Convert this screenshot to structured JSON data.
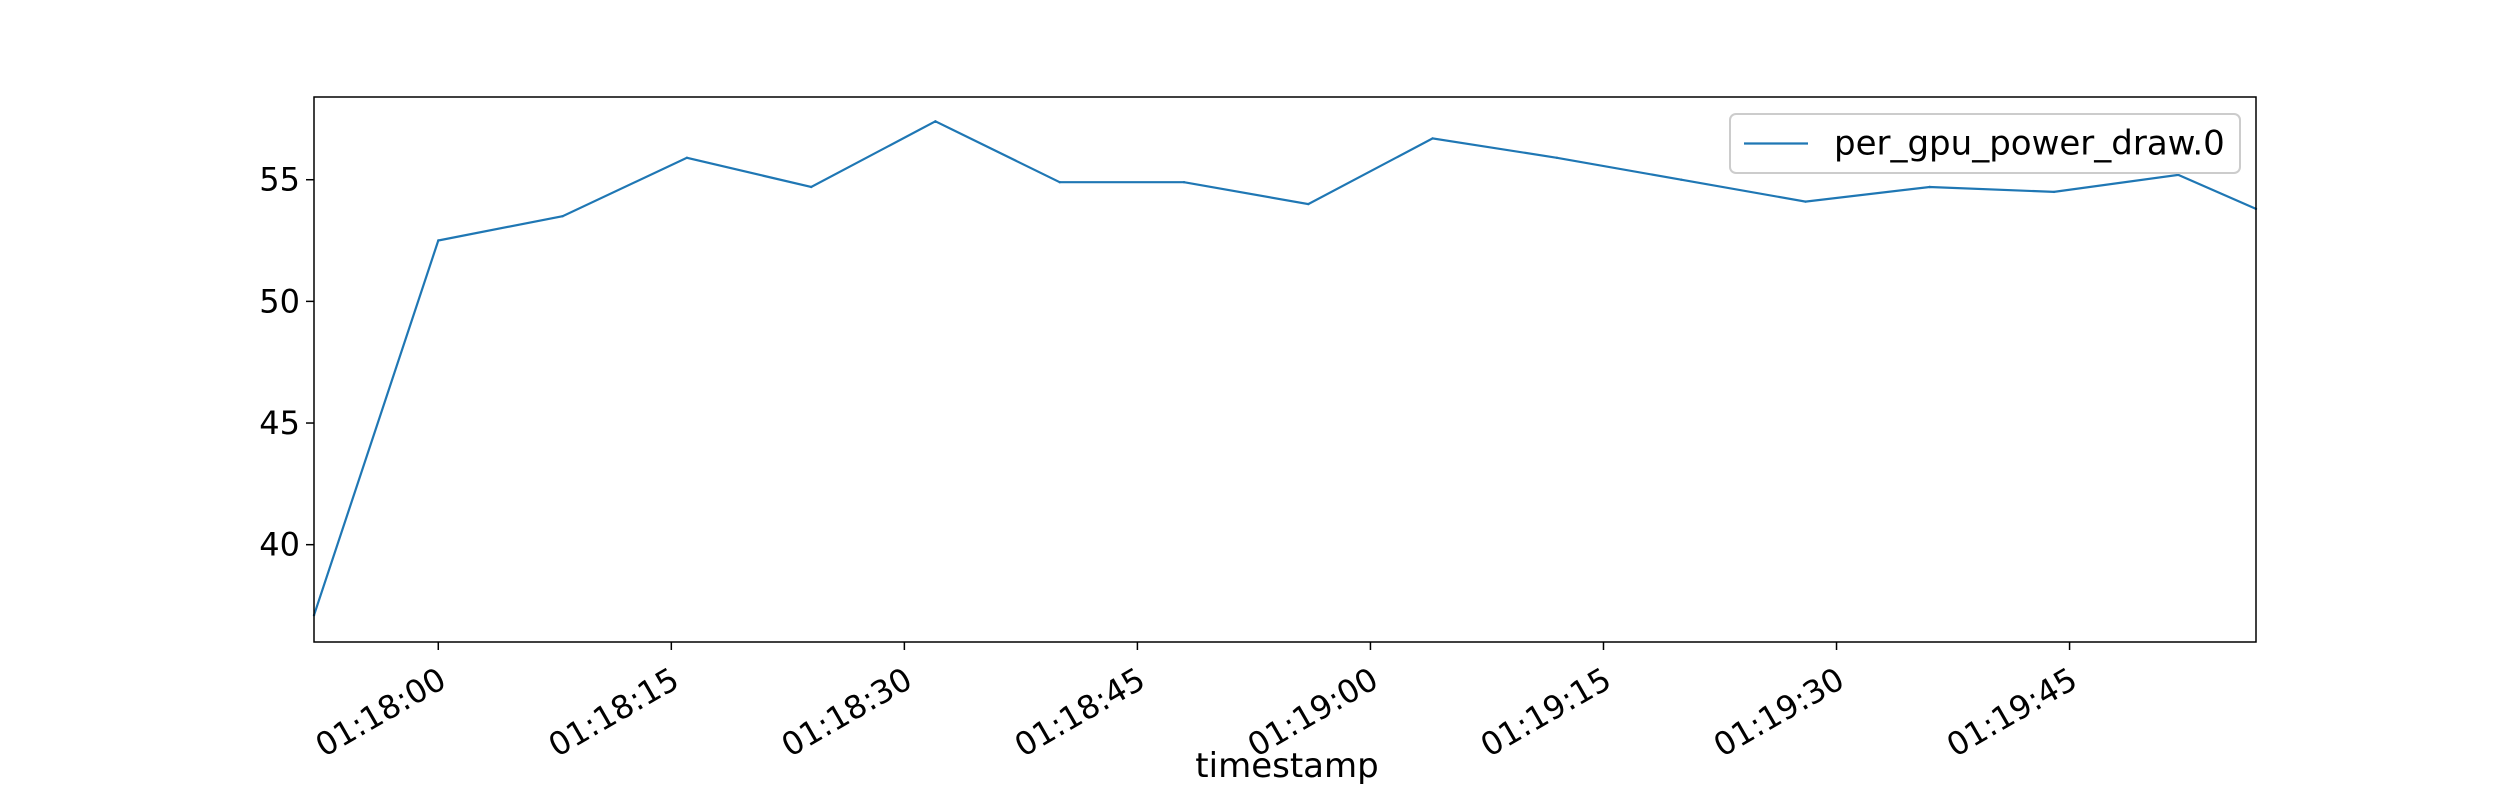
{
  "chart_data": {
    "type": "line",
    "title": "",
    "xlabel": "timestamp",
    "ylabel": "",
    "grid": false,
    "legend_position": "top-right",
    "x_range": [
      "01:17:52",
      "01:19:57"
    ],
    "y_range": [
      36,
      58.4
    ],
    "yticks": [
      40,
      45,
      50,
      55
    ],
    "xticks": [
      "01:18:00",
      "01:18:15",
      "01:18:30",
      "01:18:45",
      "01:19:00",
      "01:19:15",
      "01:19:30",
      "01:19:45"
    ],
    "x": [
      "01:17:52",
      "01:18:00",
      "01:18:08",
      "01:18:16",
      "01:18:24",
      "01:18:32",
      "01:18:40",
      "01:18:48",
      "01:18:56",
      "01:19:04",
      "01:19:12",
      "01:19:20",
      "01:19:28",
      "01:19:36",
      "01:19:44",
      "01:19:52",
      "01:19:57"
    ],
    "series": [
      {
        "name": "per_gpu_power_draw.0",
        "color": "#1f77b4",
        "values": [
          37.1,
          52.5,
          53.5,
          55.9,
          54.7,
          57.4,
          54.9,
          54.9,
          54.0,
          56.7,
          55.9,
          55.0,
          54.1,
          54.7,
          54.5,
          55.2,
          53.8
        ]
      }
    ]
  }
}
